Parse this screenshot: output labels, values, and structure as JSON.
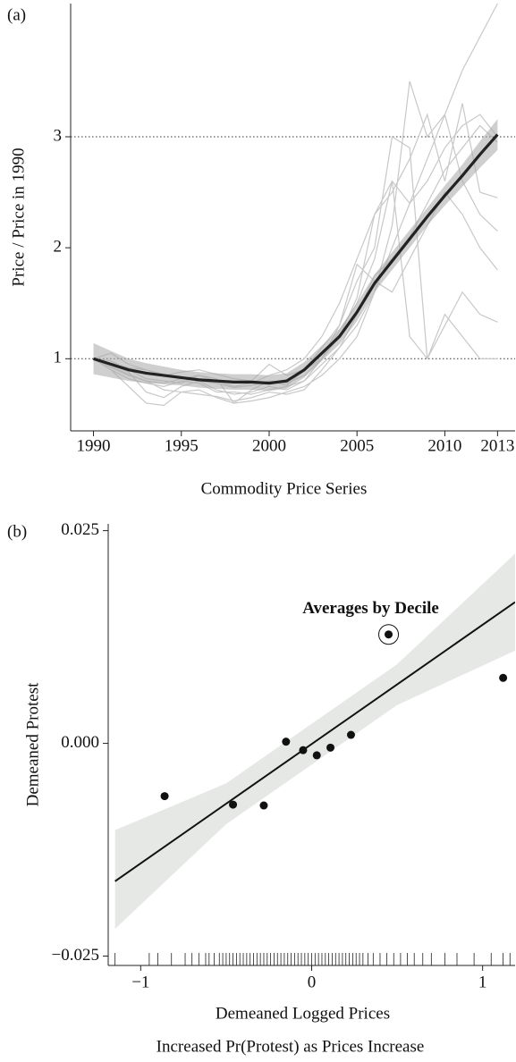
{
  "chart_data": [
    {
      "type": "line",
      "panel_label": "(a)",
      "ylabel": "Price / Price in 1990",
      "xlabel": "Commodity Price Series",
      "x": [
        1990,
        1991,
        1992,
        1993,
        1994,
        1995,
        1996,
        1997,
        1998,
        1999,
        2000,
        2001,
        2002,
        2003,
        2004,
        2005,
        2006,
        2007,
        2008,
        2009,
        2010,
        2011,
        2012,
        2013
      ],
      "xlim": [
        1988.7,
        2014
      ],
      "xticks": [
        1990,
        1995,
        2000,
        2005,
        2010,
        2013
      ],
      "ylim": [
        0.35,
        4.2
      ],
      "yticks": [
        1,
        2,
        3
      ],
      "hlines": [
        1,
        3
      ],
      "series": [
        {
          "color": "#c8c8c8",
          "values": [
            1,
            0.92,
            0.85,
            0.8,
            0.78,
            0.82,
            0.85,
            0.8,
            0.75,
            0.78,
            0.85,
            0.9,
            1.0,
            1.2,
            1.5,
            1.9,
            2.3,
            2.6,
            2.4,
            2.8,
            3.2,
            3.6,
            3.9,
            4.2
          ]
        },
        {
          "color": "#c8c8c8",
          "values": [
            1,
            0.95,
            0.88,
            0.7,
            0.65,
            0.75,
            0.8,
            0.72,
            0.68,
            0.7,
            0.75,
            0.72,
            0.8,
            0.95,
            1.1,
            1.3,
            1.6,
            2.0,
            2.4,
            2.6,
            2.9,
            3.1,
            3.2,
            3.0
          ]
        },
        {
          "color": "#c8c8c8",
          "values": [
            1,
            0.9,
            0.75,
            0.6,
            0.58,
            0.7,
            0.72,
            0.65,
            0.6,
            0.62,
            0.65,
            0.7,
            0.75,
            0.85,
            1.0,
            1.2,
            1.6,
            2.2,
            3.5,
            3.0,
            3.2,
            2.6,
            2.3,
            2.15
          ]
        },
        {
          "color": "#c8c8c8",
          "values": [
            1,
            1.05,
            0.95,
            0.9,
            0.85,
            0.88,
            0.9,
            0.86,
            0.82,
            0.8,
            0.95,
            0.85,
            0.9,
            1.1,
            1.3,
            1.85,
            1.7,
            1.6,
            1.9,
            2.2,
            2.5,
            2.3,
            2.0,
            1.8
          ]
        },
        {
          "color": "#c8c8c8",
          "values": [
            1,
            0.98,
            0.9,
            0.82,
            0.8,
            0.78,
            0.85,
            0.82,
            0.6,
            0.72,
            0.8,
            0.76,
            0.9,
            1.0,
            1.25,
            1.5,
            1.9,
            2.6,
            1.2,
            1.0,
            1.3,
            1.6,
            1.4,
            1.33
          ]
        },
        {
          "color": "#c8c8c8",
          "values": [
            1,
            0.93,
            0.86,
            0.8,
            0.72,
            0.7,
            0.68,
            0.66,
            0.62,
            0.65,
            0.7,
            0.68,
            0.72,
            0.9,
            1.1,
            1.4,
            1.75,
            1.9,
            2.1,
            2.4,
            2.7,
            2.9,
            3.1,
            2.95
          ]
        },
        {
          "color": "#c8c8c8",
          "values": [
            1,
            0.96,
            0.92,
            0.9,
            0.86,
            0.84,
            0.8,
            0.78,
            0.74,
            0.76,
            0.8,
            0.78,
            0.85,
            1.0,
            1.2,
            1.55,
            2.3,
            2.5,
            2.8,
            3.2,
            2.6,
            3.3,
            2.5,
            2.45
          ]
        },
        {
          "color": "#c8c8c8",
          "values": [
            1,
            0.9,
            0.82,
            0.78,
            0.75,
            0.8,
            0.78,
            0.7,
            0.7,
            0.68,
            0.72,
            0.75,
            0.8,
            1.0,
            1.3,
            1.7,
            2.0,
            3.0,
            2.9,
            1.0,
            1.4,
            1.2,
            1.0,
            1.0
          ]
        }
      ],
      "smooth": {
        "color": "#222222",
        "band_color": "#a8a8a8",
        "values": [
          1.0,
          0.95,
          0.9,
          0.87,
          0.85,
          0.83,
          0.81,
          0.8,
          0.79,
          0.79,
          0.78,
          0.8,
          0.9,
          1.05,
          1.2,
          1.42,
          1.68,
          1.88,
          2.08,
          2.28,
          2.47,
          2.65,
          2.84,
          3.02
        ],
        "lower": [
          0.86,
          0.83,
          0.8,
          0.78,
          0.77,
          0.76,
          0.74,
          0.73,
          0.72,
          0.72,
          0.71,
          0.73,
          0.83,
          0.98,
          1.13,
          1.34,
          1.6,
          1.8,
          2.0,
          2.2,
          2.38,
          2.55,
          2.72,
          2.88
        ],
        "upper": [
          1.14,
          1.07,
          1.0,
          0.96,
          0.93,
          0.9,
          0.88,
          0.87,
          0.86,
          0.86,
          0.85,
          0.87,
          0.97,
          1.12,
          1.27,
          1.5,
          1.76,
          1.96,
          2.16,
          2.36,
          2.56,
          2.75,
          2.96,
          3.16
        ]
      }
    },
    {
      "type": "scatter",
      "panel_label": "(b)",
      "ylabel": "Demeaned Protest",
      "xlabel": "Demeaned Logged Prices",
      "caption": "Increased Pr(Protest) as Prices Increase",
      "annotation": "Averages by Decile",
      "xlim": [
        -1.19,
        1.19
      ],
      "xticks": [
        {
          "value": -1,
          "label": "−1"
        },
        0,
        1
      ],
      "ylim": [
        -0.0261,
        0.0258
      ],
      "yticks": [
        {
          "value": -0.025,
          "label": "−0.025"
        },
        {
          "value": 0,
          "label": "0.000"
        },
        0.025
      ],
      "color": "#111111",
      "x": [
        -0.86,
        -0.46,
        -0.28,
        -0.15,
        -0.05,
        0.03,
        0.11,
        0.23,
        0.45,
        1.12
      ],
      "values": [
        -0.0062,
        -0.0072,
        -0.0073,
        0.0002,
        -0.0008,
        -0.0014,
        -0.0005,
        0.001,
        0.0128,
        0.0077
      ],
      "fit": {
        "x": [
          -1.15,
          1.19
        ],
        "y": [
          -0.0162,
          0.0166
        ],
        "color": "#111111"
      },
      "fit_band": {
        "color": "#e6e8e6",
        "x": [
          -1.15,
          -0.5,
          0,
          0.5,
          1.19
        ],
        "lower": [
          -0.0218,
          -0.0095,
          -0.0025,
          0.0045,
          0.0109
        ],
        "upper": [
          -0.0102,
          -0.0047,
          0.0023,
          0.0093,
          0.0223
        ]
      },
      "rug": [
        -1.15,
        -0.95,
        -0.9,
        -0.82,
        -0.74,
        -0.7,
        -0.66,
        -0.62,
        -0.6,
        -0.57,
        -0.54,
        -0.52,
        -0.5,
        -0.48,
        -0.46,
        -0.44,
        -0.42,
        -0.4,
        -0.38,
        -0.36,
        -0.34,
        -0.32,
        -0.3,
        -0.28,
        -0.26,
        -0.24,
        -0.22,
        -0.2,
        -0.18,
        -0.16,
        -0.14,
        -0.12,
        -0.1,
        -0.08,
        -0.06,
        -0.04,
        -0.02,
        0,
        0.02,
        0.04,
        0.06,
        0.08,
        0.1,
        0.12,
        0.14,
        0.16,
        0.18,
        0.2,
        0.22,
        0.24,
        0.26,
        0.28,
        0.3,
        0.33,
        0.36,
        0.4,
        0.44,
        0.48,
        0.52,
        0.56,
        0.6,
        0.65,
        0.7,
        0.78,
        0.85,
        0.95,
        1.05,
        1.12,
        1.16
      ]
    }
  ]
}
